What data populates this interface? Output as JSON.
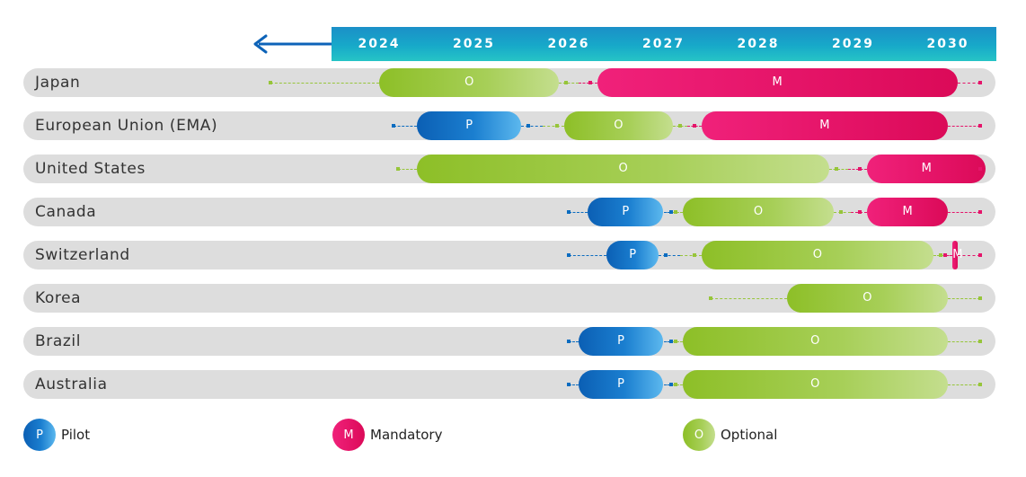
{
  "years": [
    "2024",
    "2025",
    "2026",
    "2027",
    "2028",
    "2029",
    "2030"
  ],
  "colors": {
    "pilot": "#0b6cc0",
    "mandatory": "#e5146a",
    "optional": "#97c53a",
    "arrow": "#0d63b8",
    "row_background": "#dddddd",
    "year_band": "#1a9cc9"
  },
  "phases": {
    "P": {
      "letter": "P",
      "label": "Pilot"
    },
    "M": {
      "letter": "M",
      "label": "Mandatory"
    },
    "O": {
      "letter": "O",
      "label": "Optional"
    }
  },
  "rows": [
    {
      "name": "Japan",
      "leader_start": 2022.85,
      "segments": [
        {
          "phase": "O",
          "start": 2024.0,
          "end": 2025.9
        },
        {
          "phase": "M",
          "start": 2026.3,
          "end": 2030.1
        }
      ]
    },
    {
      "name": "European Union (EMA)",
      "leader_start": 2024.15,
      "segments": [
        {
          "phase": "P",
          "start": 2024.4,
          "end": 2025.5
        },
        {
          "phase": "O",
          "start": 2025.95,
          "end": 2027.1
        },
        {
          "phase": "M",
          "start": 2027.4,
          "end": 2030.0
        }
      ]
    },
    {
      "name": "United States",
      "leader_start": 2024.2,
      "segments": [
        {
          "phase": "O",
          "start": 2024.4,
          "end": 2028.75
        },
        {
          "phase": "M",
          "start": 2029.15,
          "end": 2030.4
        }
      ]
    },
    {
      "name": "Canada",
      "leader_start": 2026.0,
      "segments": [
        {
          "phase": "P",
          "start": 2026.2,
          "end": 2027.0
        },
        {
          "phase": "O",
          "start": 2027.2,
          "end": 2028.8
        },
        {
          "phase": "M",
          "start": 2029.15,
          "end": 2030.0
        }
      ]
    },
    {
      "name": "Switzerland",
      "leader_start": 2026.0,
      "segments": [
        {
          "phase": "P",
          "start": 2026.4,
          "end": 2026.95
        },
        {
          "phase": "O",
          "start": 2027.4,
          "end": 2029.85
        },
        {
          "phase": "M",
          "start": 2030.05,
          "end": 2030.1
        }
      ]
    },
    {
      "name": "Korea",
      "leader_start": 2027.5,
      "segments": [
        {
          "phase": "O",
          "start": 2028.3,
          "end": 2030.0
        }
      ]
    },
    {
      "name": "Brazil",
      "leader_start": 2026.0,
      "segments": [
        {
          "phase": "P",
          "start": 2026.1,
          "end": 2027.0
        },
        {
          "phase": "O",
          "start": 2027.2,
          "end": 2030.0
        }
      ]
    },
    {
      "name": "Australia",
      "leader_start": 2026.0,
      "segments": [
        {
          "phase": "P",
          "start": 2026.1,
          "end": 2027.0
        },
        {
          "phase": "O",
          "start": 2027.2,
          "end": 2030.0
        }
      ]
    }
  ],
  "legend": [
    {
      "phase": "P",
      "letter": "P",
      "label": "Pilot"
    },
    {
      "phase": "M",
      "letter": "M",
      "label": "Mandatory"
    },
    {
      "phase": "O",
      "letter": "O",
      "label": "Optional"
    }
  ]
}
